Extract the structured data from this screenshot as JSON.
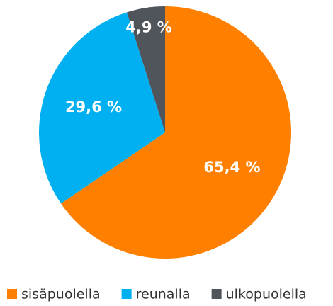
{
  "chart_data": {
    "type": "pie",
    "categories": [
      "sisäpuolella",
      "reunalla",
      "ulkopuolella"
    ],
    "values": [
      65.4,
      29.6,
      4.9
    ],
    "value_labels": [
      "65,4 %",
      "29,6 %",
      "4,9 %"
    ],
    "colors": [
      "#ff8000",
      "#00b0f0",
      "#50555b"
    ]
  }
}
